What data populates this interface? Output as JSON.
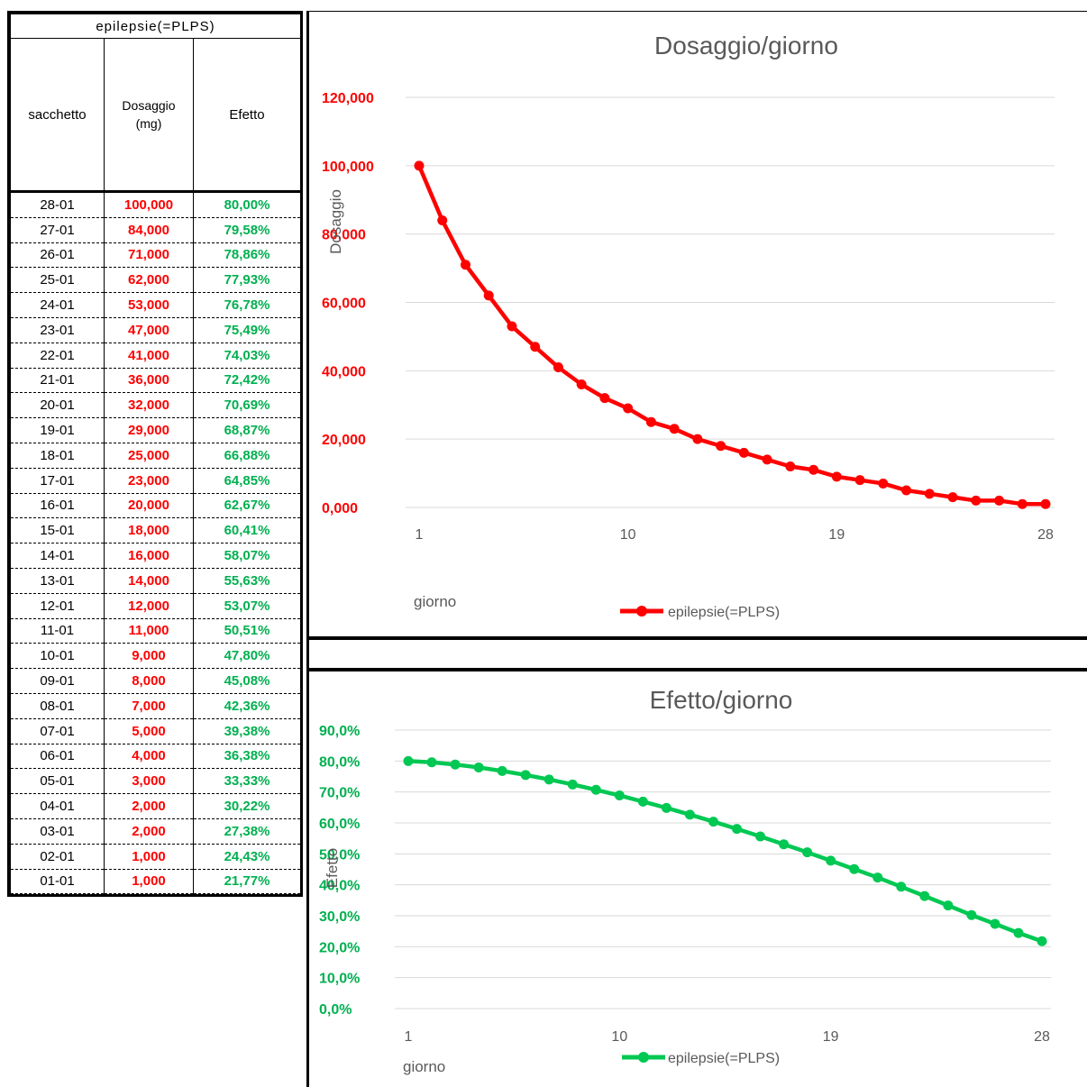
{
  "table": {
    "title": "epilepsie(=PLPS)",
    "headers": [
      "sacchetto",
      "Dosaggio (mg)",
      "Efetto"
    ],
    "header_dose_lines": [
      "Dosaggio",
      "(mg)"
    ],
    "rows": [
      {
        "date": "28-01",
        "dose": "100,000",
        "effect": "80,00%"
      },
      {
        "date": "27-01",
        "dose": "84,000",
        "effect": "79,58%"
      },
      {
        "date": "26-01",
        "dose": "71,000",
        "effect": "78,86%"
      },
      {
        "date": "25-01",
        "dose": "62,000",
        "effect": "77,93%"
      },
      {
        "date": "24-01",
        "dose": "53,000",
        "effect": "76,78%"
      },
      {
        "date": "23-01",
        "dose": "47,000",
        "effect": "75,49%"
      },
      {
        "date": "22-01",
        "dose": "41,000",
        "effect": "74,03%"
      },
      {
        "date": "21-01",
        "dose": "36,000",
        "effect": "72,42%"
      },
      {
        "date": "20-01",
        "dose": "32,000",
        "effect": "70,69%"
      },
      {
        "date": "19-01",
        "dose": "29,000",
        "effect": "68,87%"
      },
      {
        "date": "18-01",
        "dose": "25,000",
        "effect": "66,88%"
      },
      {
        "date": "17-01",
        "dose": "23,000",
        "effect": "64,85%"
      },
      {
        "date": "16-01",
        "dose": "20,000",
        "effect": "62,67%"
      },
      {
        "date": "15-01",
        "dose": "18,000",
        "effect": "60,41%"
      },
      {
        "date": "14-01",
        "dose": "16,000",
        "effect": "58,07%"
      },
      {
        "date": "13-01",
        "dose": "14,000",
        "effect": "55,63%"
      },
      {
        "date": "12-01",
        "dose": "12,000",
        "effect": "53,07%"
      },
      {
        "date": "11-01",
        "dose": "11,000",
        "effect": "50,51%"
      },
      {
        "date": "10-01",
        "dose": "9,000",
        "effect": "47,80%"
      },
      {
        "date": "09-01",
        "dose": "8,000",
        "effect": "45,08%"
      },
      {
        "date": "08-01",
        "dose": "7,000",
        "effect": "42,36%"
      },
      {
        "date": "07-01",
        "dose": "5,000",
        "effect": "39,38%"
      },
      {
        "date": "06-01",
        "dose": "4,000",
        "effect": "36,38%"
      },
      {
        "date": "05-01",
        "dose": "3,000",
        "effect": "33,33%"
      },
      {
        "date": "04-01",
        "dose": "2,000",
        "effect": "30,22%"
      },
      {
        "date": "03-01",
        "dose": "2,000",
        "effect": "27,38%"
      },
      {
        "date": "02-01",
        "dose": "1,000",
        "effect": "24,43%"
      },
      {
        "date": "01-01",
        "dose": "1,000",
        "effect": "21,77%"
      }
    ],
    "colors": {
      "dose": "#ff0000",
      "effect": "#00b050"
    }
  },
  "chart_data": [
    {
      "type": "line",
      "title": "Dosaggio/giorno",
      "xlabel": "giorno",
      "ylabel": "Dosaggio",
      "x": [
        1,
        2,
        3,
        4,
        5,
        6,
        7,
        8,
        9,
        10,
        11,
        12,
        13,
        14,
        15,
        16,
        17,
        18,
        19,
        20,
        21,
        22,
        23,
        24,
        25,
        26,
        27,
        28
      ],
      "xticks": [
        "1",
        "10",
        "19",
        "28"
      ],
      "yticks": [
        "0,000",
        "20,000",
        "40,000",
        "60,000",
        "80,000",
        "100,000",
        "120,000"
      ],
      "ylim": [
        0,
        120
      ],
      "grid": true,
      "legend": "bottom",
      "series": [
        {
          "name": "epilepsie(=PLPS)",
          "color": "#ff0000",
          "values": [
            100,
            84,
            71,
            62,
            53,
            47,
            41,
            36,
            32,
            29,
            25,
            23,
            20,
            18,
            16,
            14,
            12,
            11,
            9,
            8,
            7,
            5,
            4,
            3,
            2,
            2,
            1,
            1
          ]
        }
      ]
    },
    {
      "type": "line",
      "title": "Efetto/giorno",
      "xlabel": "giorno",
      "ylabel": "Efetto",
      "x": [
        1,
        2,
        3,
        4,
        5,
        6,
        7,
        8,
        9,
        10,
        11,
        12,
        13,
        14,
        15,
        16,
        17,
        18,
        19,
        20,
        21,
        22,
        23,
        24,
        25,
        26,
        27,
        28
      ],
      "xticks": [
        "1",
        "10",
        "19",
        "28"
      ],
      "yticks": [
        "0,0%",
        "10,0%",
        "20,0%",
        "30,0%",
        "40,0%",
        "50,0%",
        "60,0%",
        "70,0%",
        "80,0%",
        "90,0%"
      ],
      "ylim": [
        0,
        90
      ],
      "grid": true,
      "legend": "bottom",
      "series": [
        {
          "name": "epilepsie(=PLPS)",
          "color": "#00c853",
          "values": [
            80.0,
            79.58,
            78.86,
            77.93,
            76.78,
            75.49,
            74.03,
            72.42,
            70.69,
            68.87,
            66.88,
            64.85,
            62.67,
            60.41,
            58.07,
            55.63,
            53.07,
            50.51,
            47.8,
            45.08,
            42.36,
            39.38,
            36.38,
            33.33,
            30.22,
            27.38,
            24.43,
            21.77
          ]
        }
      ]
    }
  ]
}
